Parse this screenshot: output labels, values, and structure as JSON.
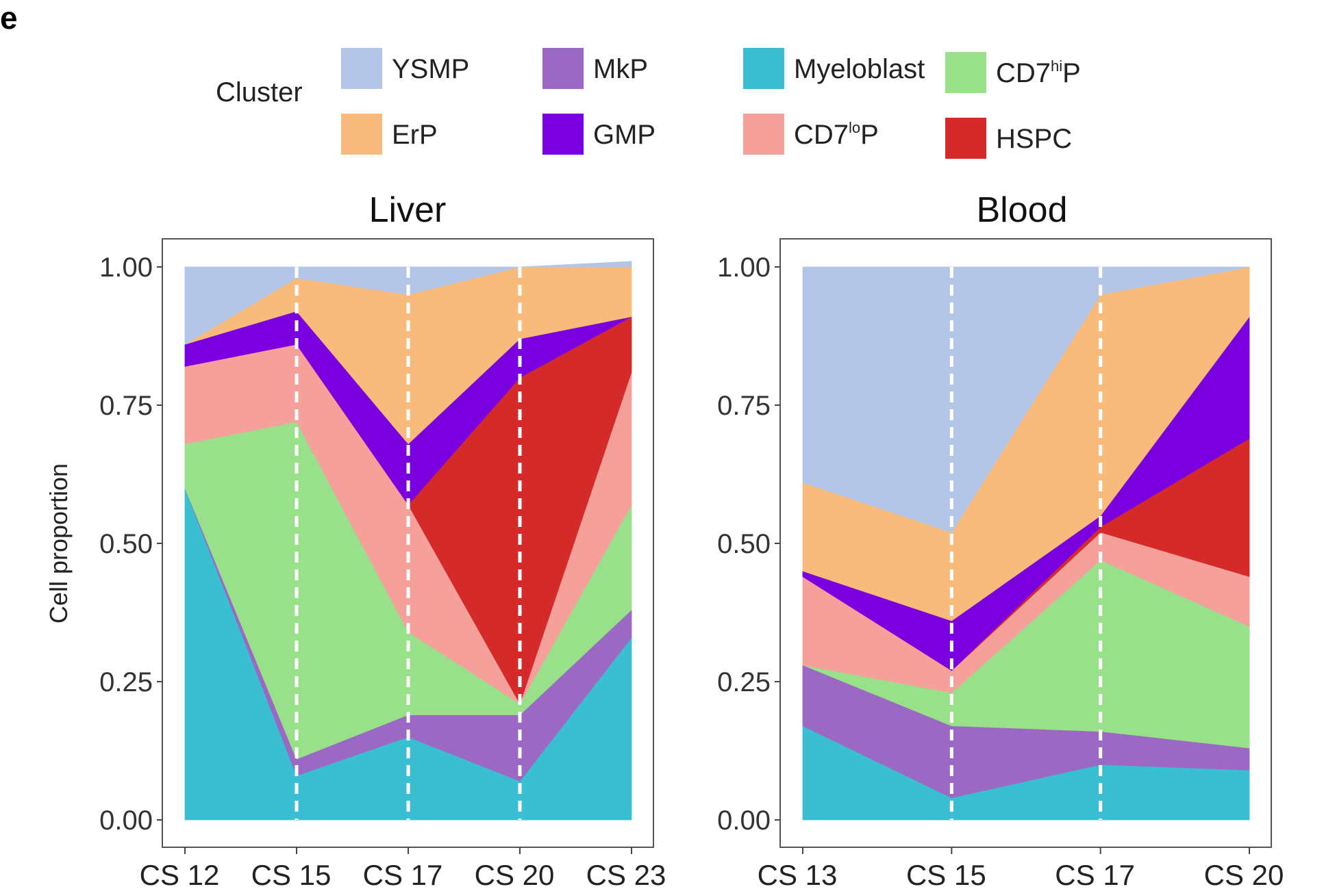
{
  "panel_label": "e",
  "legend": {
    "title": "Cluster",
    "items": [
      {
        "key": "YSMP",
        "label": "YSMP",
        "sup": "",
        "color": "#b3c6e8"
      },
      {
        "key": "ErP",
        "label": "ErP",
        "sup": "",
        "color": "#f8bb7c"
      },
      {
        "key": "MkP",
        "label": "MkP",
        "sup": "",
        "color": "#9b69c4"
      },
      {
        "key": "GMP",
        "label": "GMP",
        "sup": "",
        "color": "#7b00e0"
      },
      {
        "key": "Myeloblast",
        "label": "Myeloblast",
        "sup": "",
        "color": "#3abfd2"
      },
      {
        "key": "CD7loP",
        "label": "CD7",
        "sup": "lo",
        "suffix": "P",
        "color": "#f5a09a"
      },
      {
        "key": "CD7hiP",
        "label": "CD7",
        "sup": "hi",
        "suffix": "P",
        "color": "#98e08a"
      },
      {
        "key": "HSPC",
        "label": "HSPC",
        "sup": "",
        "color": "#d42a29"
      }
    ]
  },
  "chart_data": [
    {
      "type": "area",
      "title": "Liver",
      "xlabel": "",
      "ylabel": "Cell proportion",
      "ylim": [
        0,
        1
      ],
      "yticks": [
        "0.00",
        "0.25",
        "0.50",
        "0.75",
        "1.00"
      ],
      "categories": [
        "CS 12",
        "CS 15",
        "CS 17",
        "CS 20",
        "CS 23"
      ],
      "stack_order": [
        "Myeloblast",
        "MkP",
        "CD7hiP",
        "CD7loP",
        "HSPC",
        "GMP",
        "ErP",
        "YSMP"
      ],
      "series": [
        {
          "name": "Myeloblast",
          "values": [
            0.6,
            0.08,
            0.15,
            0.07,
            0.33
          ]
        },
        {
          "name": "MkP",
          "values": [
            0.0,
            0.03,
            0.04,
            0.12,
            0.05
          ]
        },
        {
          "name": "CD7hiP",
          "values": [
            0.08,
            0.61,
            0.15,
            0.02,
            0.19
          ]
        },
        {
          "name": "CD7loP",
          "values": [
            0.14,
            0.14,
            0.23,
            0.0,
            0.24
          ]
        },
        {
          "name": "HSPC",
          "values": [
            0.0,
            0.0,
            0.0,
            0.59,
            0.1
          ]
        },
        {
          "name": "GMP",
          "values": [
            0.04,
            0.06,
            0.11,
            0.07,
            0.0
          ]
        },
        {
          "name": "ErP",
          "values": [
            0.0,
            0.06,
            0.27,
            0.13,
            0.1
          ]
        },
        {
          "name": "YSMP",
          "values": [
            0.14,
            0.02,
            0.05,
            0.0,
            0.0
          ]
        }
      ]
    },
    {
      "type": "area",
      "title": "Blood",
      "xlabel": "",
      "ylabel": "",
      "ylim": [
        0,
        1
      ],
      "yticks": [
        "0.00",
        "0.25",
        "0.50",
        "0.75",
        "1.00"
      ],
      "categories": [
        "CS 13",
        "CS 15",
        "CS 17",
        "CS 20"
      ],
      "stack_order": [
        "Myeloblast",
        "MkP",
        "CD7hiP",
        "CD7loP",
        "HSPC",
        "GMP",
        "ErP",
        "YSMP"
      ],
      "series": [
        {
          "name": "Myeloblast",
          "values": [
            0.17,
            0.04,
            0.1,
            0.09
          ]
        },
        {
          "name": "MkP",
          "values": [
            0.11,
            0.13,
            0.06,
            0.04
          ]
        },
        {
          "name": "CD7hiP",
          "values": [
            0.0,
            0.06,
            0.31,
            0.22
          ]
        },
        {
          "name": "CD7loP",
          "values": [
            0.16,
            0.04,
            0.05,
            0.09
          ]
        },
        {
          "name": "HSPC",
          "values": [
            0.0,
            0.0,
            0.01,
            0.25
          ]
        },
        {
          "name": "GMP",
          "values": [
            0.01,
            0.09,
            0.02,
            0.22
          ]
        },
        {
          "name": "ErP",
          "values": [
            0.16,
            0.16,
            0.4,
            0.09
          ]
        },
        {
          "name": "YSMP",
          "values": [
            0.39,
            0.48,
            0.05,
            0.0
          ]
        }
      ]
    }
  ]
}
